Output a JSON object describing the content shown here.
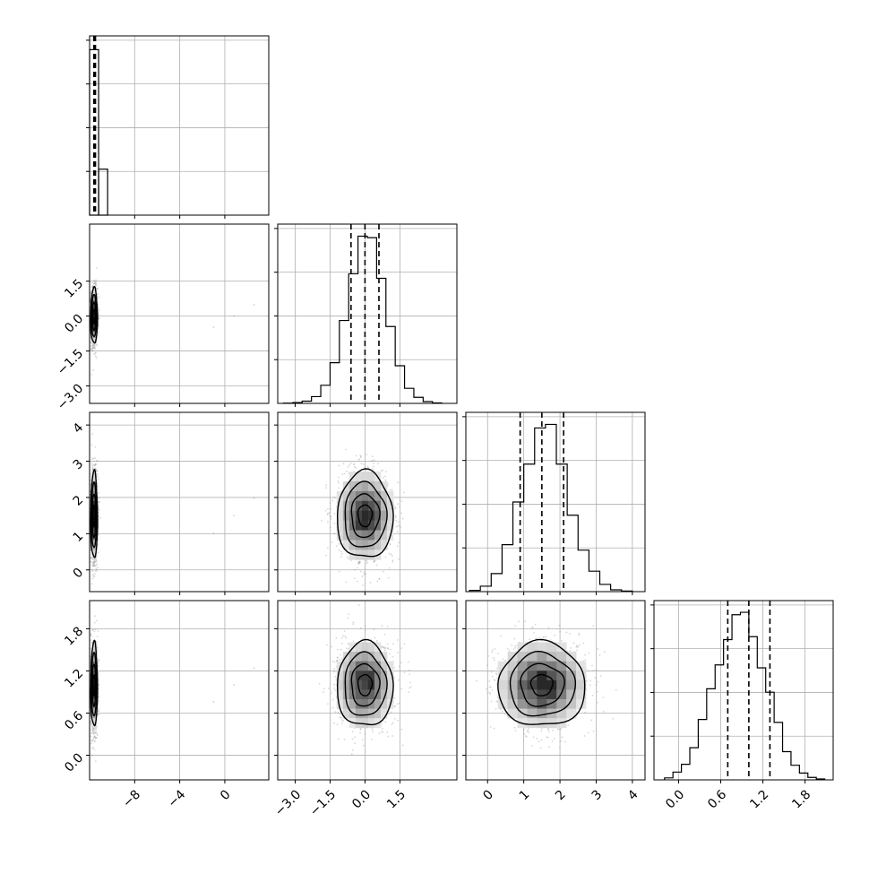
{
  "chart_data": {
    "type": "corner",
    "variables": 4,
    "grid": true,
    "colors": {
      "hist": "#000000",
      "grid": "#b0b0b0",
      "points": "#8c8c8c",
      "contour": "#000000",
      "frame": "#000000"
    },
    "axes": [
      {
        "index": 0,
        "range": [
          -12.0,
          3.9
        ],
        "ticks": [
          -8,
          -4,
          0
        ],
        "tick_labels": [
          "−8",
          "−4",
          "0"
        ],
        "hist_range": [
          -12.0,
          3.9
        ]
      },
      {
        "index": 1,
        "range": [
          -3.75,
          3.95
        ],
        "ticks": [
          -3.0,
          -1.5,
          0.0,
          1.5
        ],
        "tick_labels": [
          "−3.0",
          "−1.5",
          "0.0",
          "1.5"
        ]
      },
      {
        "index": 2,
        "range": [
          -0.6,
          4.35
        ],
        "ticks": [
          0,
          1,
          2,
          3,
          4
        ],
        "tick_labels": [
          "0",
          "1",
          "2",
          "3",
          "4"
        ]
      },
      {
        "index": 3,
        "range": [
          -0.35,
          2.2
        ],
        "ticks": [
          0.0,
          0.6,
          1.2,
          1.8
        ],
        "tick_labels": [
          "0.0",
          "0.6",
          "1.2",
          "1.8"
        ]
      }
    ],
    "marginals": [
      {
        "var": 0,
        "bins": [
          [
            -12.0,
            -11.2,
            3.6
          ],
          [
            -11.2,
            -10.4,
            1.0
          ]
        ],
        "ymax": 3.9,
        "quantiles": [
          -11.62,
          -11.55,
          -11.48
        ]
      },
      {
        "var": 1,
        "bin_edges": [
          -3.5,
          -3.1,
          -2.7,
          -2.3,
          -1.9,
          -1.5,
          -1.1,
          -0.7,
          -0.3,
          0.1,
          0.5,
          0.9,
          1.3,
          1.7,
          2.1,
          2.5,
          2.9,
          3.3
        ],
        "counts": [
          2,
          5,
          15,
          45,
          120,
          270,
          550,
          860,
          1110,
          1100,
          830,
          510,
          250,
          100,
          40,
          12,
          3
        ],
        "ymax": 1190,
        "quantiles": [
          -0.6,
          0.0,
          0.6
        ]
      },
      {
        "var": 2,
        "bin_edges": [
          -0.5,
          -0.2,
          0.1,
          0.4,
          0.7,
          1.0,
          1.3,
          1.6,
          1.9,
          2.2,
          2.5,
          2.8,
          3.1,
          3.4,
          3.7,
          4.0
        ],
        "counts": [
          10,
          45,
          150,
          390,
          745,
          1060,
          1360,
          1390,
          1060,
          635,
          345,
          170,
          60,
          15,
          5
        ],
        "ymax": 1490,
        "quantiles": [
          0.9,
          1.5,
          2.1
        ]
      },
      {
        "var": 3,
        "bin_edges": [
          -0.2,
          -0.08,
          0.04,
          0.16,
          0.28,
          0.4,
          0.52,
          0.64,
          0.76,
          0.88,
          1.0,
          1.12,
          1.24,
          1.36,
          1.48,
          1.6,
          1.72,
          1.84,
          1.96,
          2.08
        ],
        "counts": [
          20,
          80,
          160,
          330,
          620,
          935,
          1180,
          1440,
          1695,
          1720,
          1470,
          1150,
          900,
          590,
          290,
          150,
          70,
          25,
          10
        ],
        "ymax": 1840,
        "quantiles": [
          0.7,
          1.0,
          1.3
        ]
      }
    ],
    "joints": [
      {
        "x": 0,
        "y": 1,
        "center": [
          -11.6,
          0.0
        ],
        "sigma": [
          0.15,
          0.6
        ],
        "levels": [
          0.5,
          1.0,
          1.5,
          2.0
        ]
      },
      {
        "x": 0,
        "y": 2,
        "center": [
          -11.6,
          1.5
        ],
        "sigma": [
          0.15,
          0.6
        ],
        "levels": [
          0.5,
          1.0,
          1.5,
          2.0
        ]
      },
      {
        "x": 0,
        "y": 3,
        "center": [
          -11.6,
          1.0
        ],
        "sigma": [
          0.15,
          0.3
        ],
        "levels": [
          0.5,
          1.0,
          1.5,
          2.0
        ]
      },
      {
        "x": 1,
        "y": 2,
        "center": [
          0.0,
          1.5
        ],
        "sigma": [
          0.6,
          0.6
        ],
        "levels": [
          0.5,
          1.0,
          1.5,
          2.0
        ]
      },
      {
        "x": 1,
        "y": 3,
        "center": [
          0.0,
          1.0
        ],
        "sigma": [
          0.6,
          0.3
        ],
        "levels": [
          0.5,
          1.0,
          1.5,
          2.0
        ]
      },
      {
        "x": 2,
        "y": 3,
        "center": [
          1.5,
          1.0
        ],
        "sigma": [
          0.6,
          0.3
        ],
        "levels": [
          0.5,
          1.0,
          1.5,
          2.0
        ]
      }
    ]
  }
}
